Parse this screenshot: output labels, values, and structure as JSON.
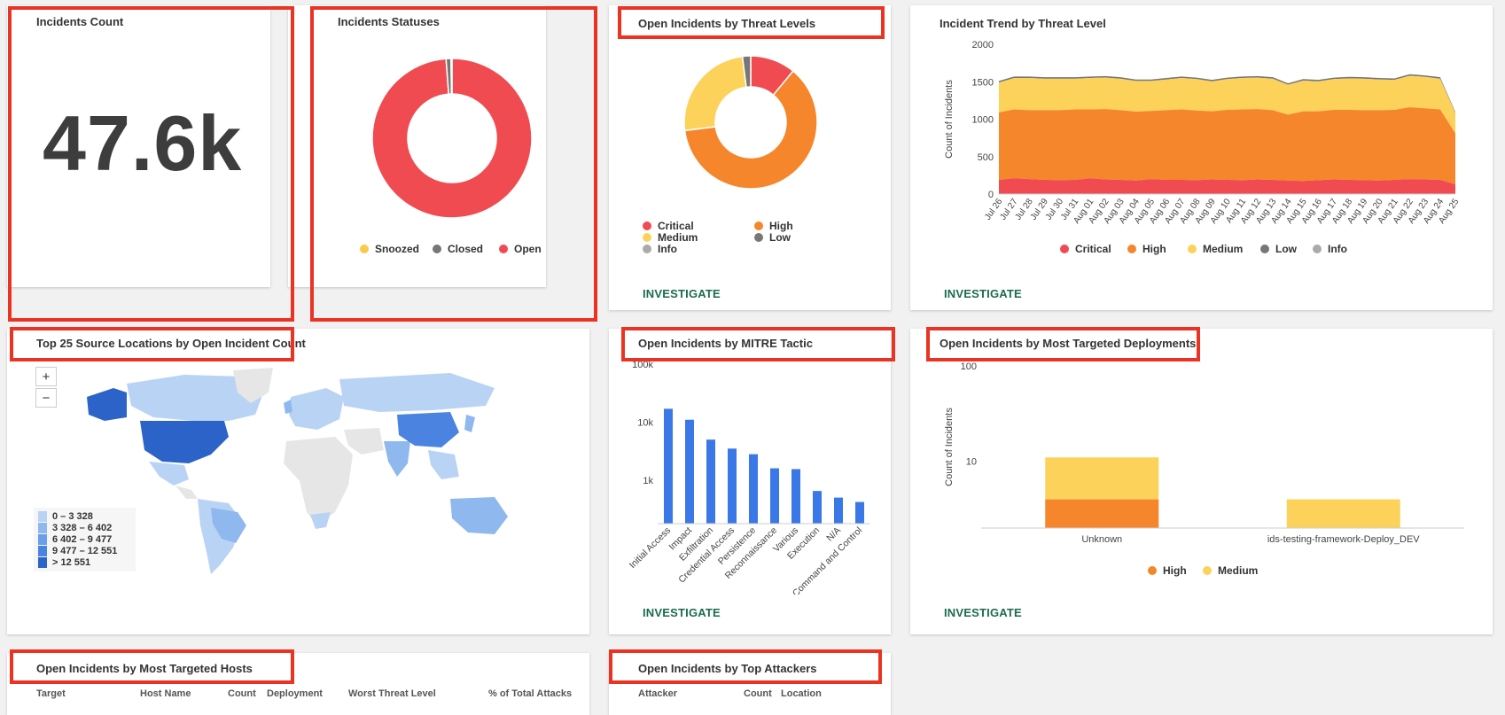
{
  "investigate_label": "INVESTIGATE",
  "incidents_count": {
    "title": "Incidents Count",
    "value": "47.6k"
  },
  "incident_statuses": {
    "title": "Incidents Statuses",
    "legend": [
      {
        "label": "Snoozed",
        "color": "#f9cb4d"
      },
      {
        "label": "Closed",
        "color": "#777777"
      },
      {
        "label": "Open",
        "color": "#ef4b51"
      }
    ]
  },
  "threat_levels": {
    "title": "Open Incidents by Threat Levels",
    "legend": [
      {
        "label": "Critical",
        "color": "#ef4b51"
      },
      {
        "label": "High",
        "color": "#f5862b"
      },
      {
        "label": "Medium",
        "color": "#fdd25a"
      },
      {
        "label": "Low",
        "color": "#777777"
      },
      {
        "label": "Info",
        "color": "#aaaaaa"
      }
    ]
  },
  "trend": {
    "title": "Incident Trend by Threat Level",
    "legend": [
      {
        "label": "Critical",
        "color": "#ef4b51"
      },
      {
        "label": "High",
        "color": "#f5862b"
      },
      {
        "label": "Medium",
        "color": "#fdd25a"
      },
      {
        "label": "Low",
        "color": "#777777"
      },
      {
        "label": "Info",
        "color": "#aaaaaa"
      }
    ]
  },
  "map": {
    "title": "Top 25 Source Locations by Open Incident Count",
    "zoom_in": "+",
    "zoom_out": "−",
    "legend": [
      {
        "label": "0 – 3 328",
        "color": "#b9d3f5"
      },
      {
        "label": "3 328 – 6 402",
        "color": "#8fb8ef"
      },
      {
        "label": "6 402 – 9 477",
        "color": "#6a9ee8"
      },
      {
        "label": "9 477 – 12 551",
        "color": "#4a84e0"
      },
      {
        "label": "> 12 551",
        "color": "#2c63c8"
      }
    ]
  },
  "mitre": {
    "title": "Open Incidents by MITRE Tactic"
  },
  "deployments": {
    "title": "Open Incidents by Most Targeted Deployments",
    "legend": [
      {
        "label": "High",
        "color": "#f5862b"
      },
      {
        "label": "Medium",
        "color": "#fdd25a"
      }
    ]
  },
  "hosts": {
    "title": "Open Incidents by Most Targeted Hosts",
    "columns": [
      "Target",
      "Host Name",
      "Count",
      "Deployment",
      "Worst Threat Level",
      "% of Total Attacks"
    ]
  },
  "attackers": {
    "title": "Open Incidents by Top Attackers",
    "columns": [
      "Attacker",
      "Count",
      "Location"
    ]
  },
  "chart_data": [
    {
      "type": "pie",
      "labels": [
        "Open",
        "Closed",
        "Snoozed"
      ],
      "values": [
        98.8,
        1.0,
        0.2
      ],
      "colors": [
        "#ef4b51",
        "#777777",
        "#f9cb4d"
      ]
    },
    {
      "type": "pie",
      "labels": [
        "Critical",
        "High",
        "Medium",
        "Low"
      ],
      "values": [
        11,
        62,
        25,
        2
      ],
      "colors": [
        "#ef4b51",
        "#f5862b",
        "#fdd25a",
        "#777777"
      ]
    },
    {
      "type": "area",
      "ylabel": "Count of Incidents",
      "ylim": [
        0,
        2000
      ],
      "yticks": [
        0,
        500,
        1000,
        1500,
        2000
      ],
      "categories": [
        "Jul 26",
        "Jul 27",
        "Jul 28",
        "Jul 29",
        "Jul 30",
        "Jul 31",
        "Aug 01",
        "Aug 02",
        "Aug 03",
        "Aug 04",
        "Aug 05",
        "Aug 06",
        "Aug 07",
        "Aug 08",
        "Aug 09",
        "Aug 10",
        "Aug 11",
        "Aug 12",
        "Aug 13",
        "Aug 14",
        "Aug 15",
        "Aug 16",
        "Aug 17",
        "Aug 18",
        "Aug 19",
        "Aug 20",
        "Aug 21",
        "Aug 22",
        "Aug 23",
        "Aug 24",
        "Aug 25"
      ],
      "series": [
        {
          "name": "Critical",
          "color": "#ef4b51",
          "values": [
            190,
            210,
            200,
            190,
            185,
            190,
            210,
            195,
            190,
            180,
            200,
            190,
            190,
            185,
            195,
            190,
            185,
            195,
            190,
            180,
            175,
            185,
            195,
            190,
            185,
            180,
            190,
            200,
            195,
            190,
            130
          ]
        },
        {
          "name": "High",
          "color": "#f5862b",
          "values": [
            900,
            920,
            920,
            930,
            935,
            940,
            920,
            940,
            930,
            920,
            910,
            930,
            940,
            930,
            910,
            935,
            945,
            940,
            930,
            880,
            930,
            920,
            930,
            935,
            935,
            940,
            935,
            960,
            950,
            940,
            680
          ]
        },
        {
          "name": "Medium",
          "color": "#fdd25a",
          "values": [
            400,
            420,
            430,
            420,
            420,
            410,
            420,
            420,
            420,
            410,
            400,
            410,
            420,
            420,
            400,
            410,
            420,
            420,
            420,
            400,
            410,
            400,
            410,
            420,
            420,
            410,
            400,
            420,
            420,
            410,
            270
          ]
        },
        {
          "name": "Low",
          "color": "#777777",
          "values": [
            20,
            20,
            20,
            20,
            20,
            20,
            20,
            20,
            20,
            20,
            20,
            20,
            20,
            20,
            20,
            20,
            20,
            20,
            20,
            20,
            20,
            20,
            20,
            20,
            20,
            20,
            20,
            20,
            20,
            20,
            15
          ]
        }
      ]
    },
    {
      "type": "bar",
      "yscale": "log",
      "yticks": [
        "1k",
        "10k",
        "100k"
      ],
      "categories": [
        "Initial Access",
        "Impact",
        "Exfiltration",
        "Credential Access",
        "Persistence",
        "Reconnaissance",
        "Various",
        "Execution",
        "N/A",
        "Command and Control"
      ],
      "values": [
        17000,
        11000,
        5000,
        3500,
        2800,
        1600,
        1550,
        650,
        500,
        420
      ],
      "color": "#3b78e7"
    },
    {
      "type": "bar",
      "yscale": "log",
      "ylabel": "Count of Incidents",
      "yticks": [
        "10",
        "100"
      ],
      "categories": [
        "Unknown",
        "ids-testing-framework-Deploy_DEV"
      ],
      "series": [
        {
          "name": "High",
          "values": [
            4,
            0
          ]
        },
        {
          "name": "Medium",
          "values": [
            7,
            4
          ]
        }
      ]
    }
  ]
}
